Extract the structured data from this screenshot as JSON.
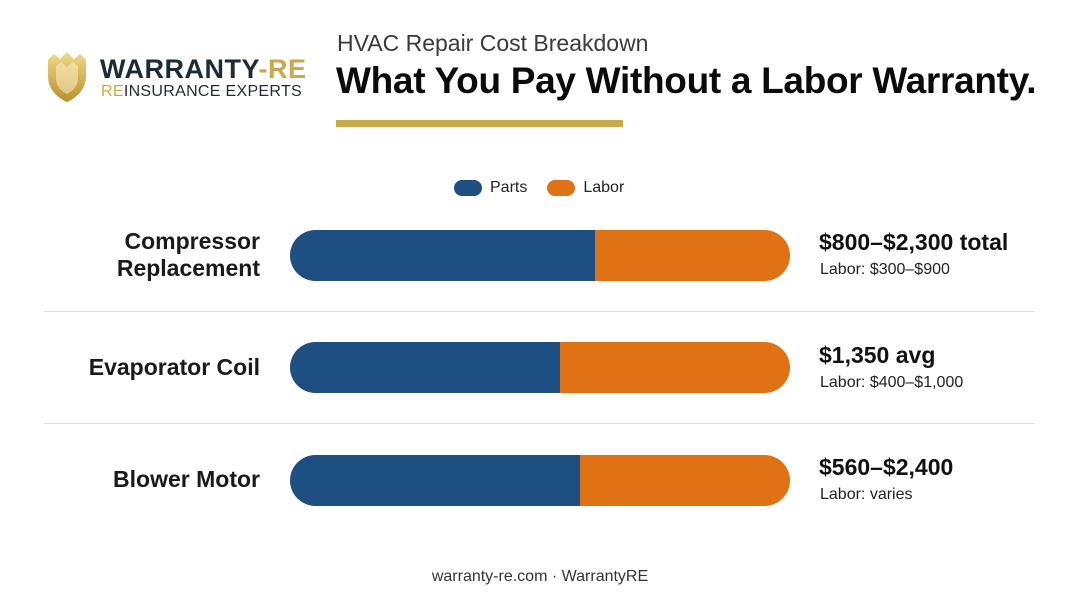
{
  "brand": {
    "name_main": "WARRANTY",
    "name_sep": "-",
    "name_accent": "RE",
    "tag_accent": "RE",
    "tag_main": "INSURANCE EXPERTS",
    "colors": {
      "gold": "#c9a94a",
      "navy": "#1f2a37"
    }
  },
  "header": {
    "subtitle": "HVAC Repair Cost Breakdown",
    "title": "What You Pay Without a Labor Warranty."
  },
  "chart_data": {
    "type": "bar",
    "orientation": "horizontal",
    "stacked": true,
    "legend": {
      "position": "top-center",
      "items": [
        "Parts",
        "Labor"
      ]
    },
    "colors": {
      "Parts": "#1e4f82",
      "Labor": "#e07115"
    },
    "categories": [
      "Compressor Replacement",
      "Evaporator Coil",
      "Blower Motor"
    ],
    "series": [
      {
        "name": "Parts",
        "values": [
          61,
          54,
          58
        ]
      },
      {
        "name": "Labor",
        "values": [
          39,
          46,
          42
        ]
      }
    ],
    "unit": "% of bar",
    "annotations": [
      {
        "total": "$800–$2,300 total",
        "labor": "Labor: $300–$900"
      },
      {
        "total": "$1,350 avg",
        "labor": "Labor: $400–$1,000"
      },
      {
        "total": "$560–$2,400",
        "labor": "Labor: varies"
      }
    ]
  },
  "row_labels": [
    {
      "line1": "Compressor",
      "line2": "Replacement"
    },
    {
      "line1": "Evaporator Coil",
      "line2": ""
    },
    {
      "line1": "Blower Motor",
      "line2": ""
    }
  ],
  "footer": "warranty-re.com · WarrantyRE"
}
